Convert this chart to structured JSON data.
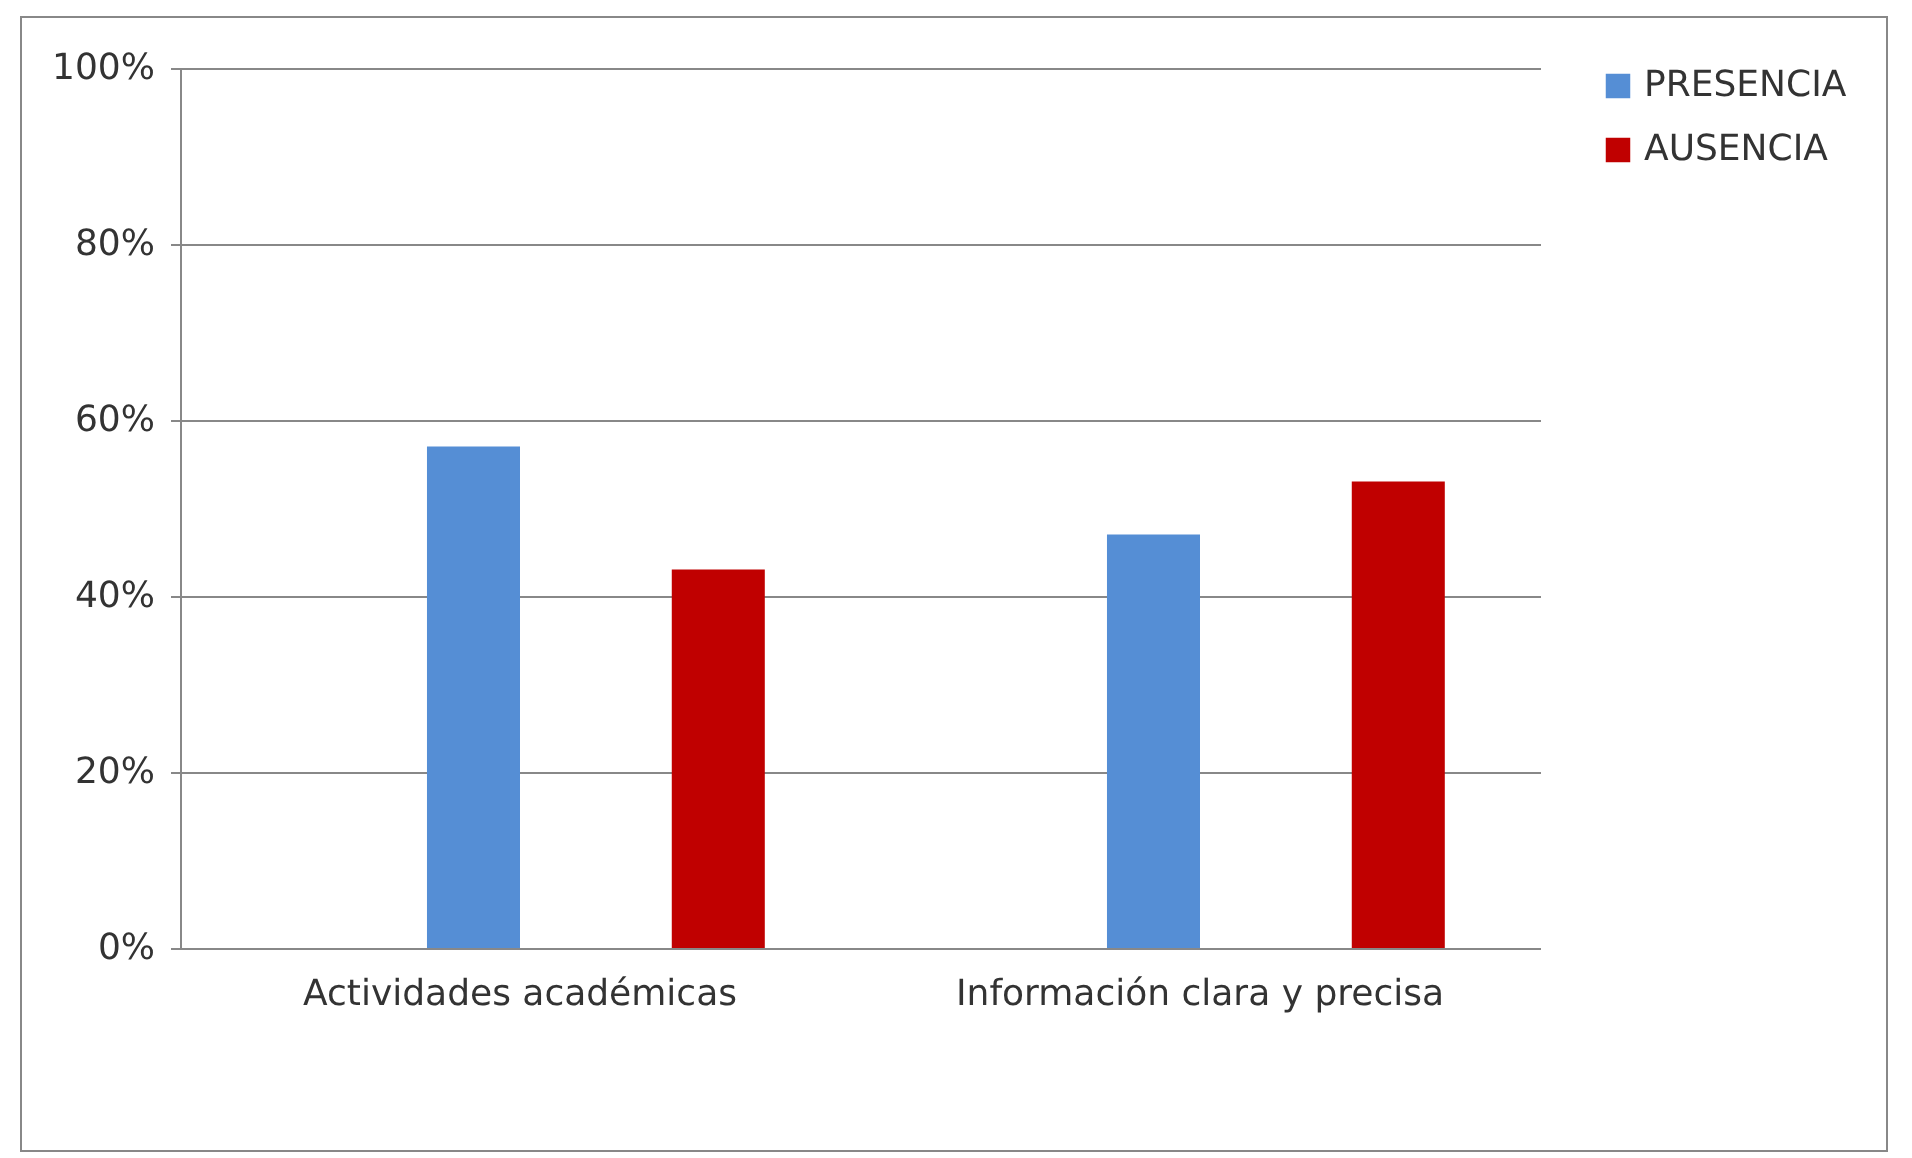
{
  "chart_data": {
    "type": "bar",
    "categories": [
      "Actividades académicas",
      "Información clara y precisa"
    ],
    "series": [
      {
        "name": "PRESENCIA",
        "color": "#558ed5",
        "values": [
          57,
          47
        ]
      },
      {
        "name": "AUSENCIA",
        "color": "#c00000",
        "values": [
          43,
          53
        ]
      }
    ],
    "ylim": [
      0,
      100
    ],
    "yticks": [
      {
        "value": 0,
        "label": "0%"
      },
      {
        "value": 20,
        "label": "20%"
      },
      {
        "value": 40,
        "label": "40%"
      },
      {
        "value": 60,
        "label": "60%"
      },
      {
        "value": 80,
        "label": "80%"
      },
      {
        "value": 100,
        "label": "100%"
      }
    ],
    "grid": "y",
    "legend": "right"
  }
}
